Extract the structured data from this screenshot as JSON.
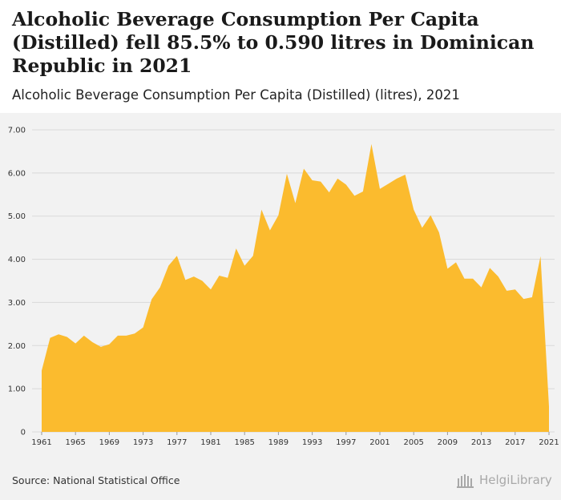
{
  "header": {
    "title": "Alcoholic Beverage Consumption Per Capita (Distilled) fell 85.5% to 0.590 litres in Dominican Republic in 2021",
    "subtitle": "Alcoholic Beverage Consumption Per Capita (Distilled) (litres), 2021"
  },
  "footer": {
    "source": "Source: National Statistical Office",
    "brand": "HelgiLibrary"
  },
  "colors": {
    "area": "#fbbb2e",
    "grid": "#d9d9d9",
    "background": "#f2f2f2"
  },
  "chart_data": {
    "type": "area",
    "title": "Alcoholic Beverage Consumption Per Capita (Distilled) (litres), 2021",
    "xlabel": "",
    "ylabel": "litres",
    "ylim": [
      0,
      7
    ],
    "yticks": [
      0,
      1,
      2,
      3,
      4,
      5,
      6,
      7
    ],
    "ytick_labels": [
      "0",
      "1.00",
      "2.00",
      "3.00",
      "4.00",
      "5.00",
      "6.00",
      "7.00"
    ],
    "xticks": [
      1961,
      1965,
      1969,
      1973,
      1977,
      1981,
      1985,
      1989,
      1993,
      1997,
      2001,
      2005,
      2009,
      2013,
      2017,
      2021
    ],
    "x": [
      1961,
      1962,
      1963,
      1964,
      1965,
      1966,
      1967,
      1968,
      1969,
      1970,
      1971,
      1972,
      1973,
      1974,
      1975,
      1976,
      1977,
      1978,
      1979,
      1980,
      1981,
      1982,
      1983,
      1984,
      1985,
      1986,
      1987,
      1988,
      1989,
      1990,
      1991,
      1992,
      1993,
      1994,
      1995,
      1996,
      1997,
      1998,
      1999,
      2000,
      2001,
      2002,
      2003,
      2004,
      2005,
      2006,
      2007,
      2008,
      2009,
      2010,
      2011,
      2012,
      2013,
      2014,
      2015,
      2016,
      2017,
      2018,
      2019,
      2020,
      2021
    ],
    "series": [
      {
        "name": "Alcoholic Beverage Consumption Per Capita (Distilled)",
        "values": [
          1.42,
          2.18,
          2.26,
          2.2,
          2.05,
          2.23,
          2.08,
          1.97,
          2.03,
          2.23,
          2.23,
          2.28,
          2.42,
          3.07,
          3.35,
          3.85,
          4.08,
          3.52,
          3.6,
          3.5,
          3.3,
          3.62,
          3.57,
          4.25,
          3.85,
          4.08,
          5.15,
          4.67,
          5.02,
          5.98,
          5.3,
          6.1,
          5.83,
          5.8,
          5.55,
          5.87,
          5.73,
          5.47,
          5.57,
          6.67,
          5.63,
          5.75,
          5.87,
          5.96,
          5.15,
          4.73,
          5.02,
          4.62,
          3.78,
          3.93,
          3.55,
          3.55,
          3.35,
          3.8,
          3.6,
          3.27,
          3.3,
          3.08,
          3.12,
          4.07,
          0.59
        ]
      }
    ]
  }
}
